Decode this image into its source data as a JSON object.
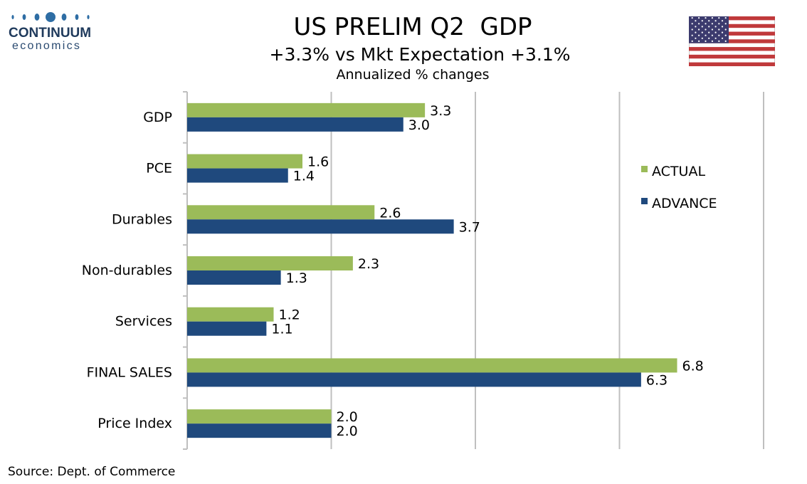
{
  "header": {
    "title": "US PRELIM Q2  GDP",
    "subtitle": "+3.3% vs Mkt Expectation +3.1%",
    "note": "Annualized % changes"
  },
  "logo": {
    "line1": "CONTINUUM",
    "line2": "economics"
  },
  "flag": {
    "icon": "us-flag-icon"
  },
  "footer": {
    "source": "Source: Dept. of Commerce"
  },
  "colors": {
    "actual": "#9bbb59",
    "advance": "#1f497d",
    "grid": "#bfbfbf"
  },
  "chart_data": {
    "type": "bar",
    "orientation": "horizontal",
    "title": "US PRELIM Q2  GDP",
    "subtitle": "+3.3% vs Mkt Expectation +3.1%",
    "categories": [
      "GDP",
      "PCE",
      "Durables",
      "Non-durables",
      "Services",
      "FINAL SALES",
      "Price Index"
    ],
    "series": [
      {
        "name": "ACTUAL",
        "values": [
          3.3,
          1.6,
          2.6,
          2.3,
          1.2,
          6.8,
          2.0
        ]
      },
      {
        "name": "ADVANCE",
        "values": [
          3.0,
          1.4,
          3.7,
          1.3,
          1.1,
          6.3,
          2.0
        ]
      }
    ],
    "value_labels": [
      [
        "3.3",
        "1.6",
        "2.6",
        "2.3",
        "1.2",
        "6.8",
        "2.0"
      ],
      [
        "3.0",
        "1.4",
        "3.7",
        "1.3",
        "1.1",
        "6.3",
        "2.0"
      ]
    ],
    "xlim": [
      0,
      8
    ],
    "grid": true,
    "legend": "right"
  }
}
